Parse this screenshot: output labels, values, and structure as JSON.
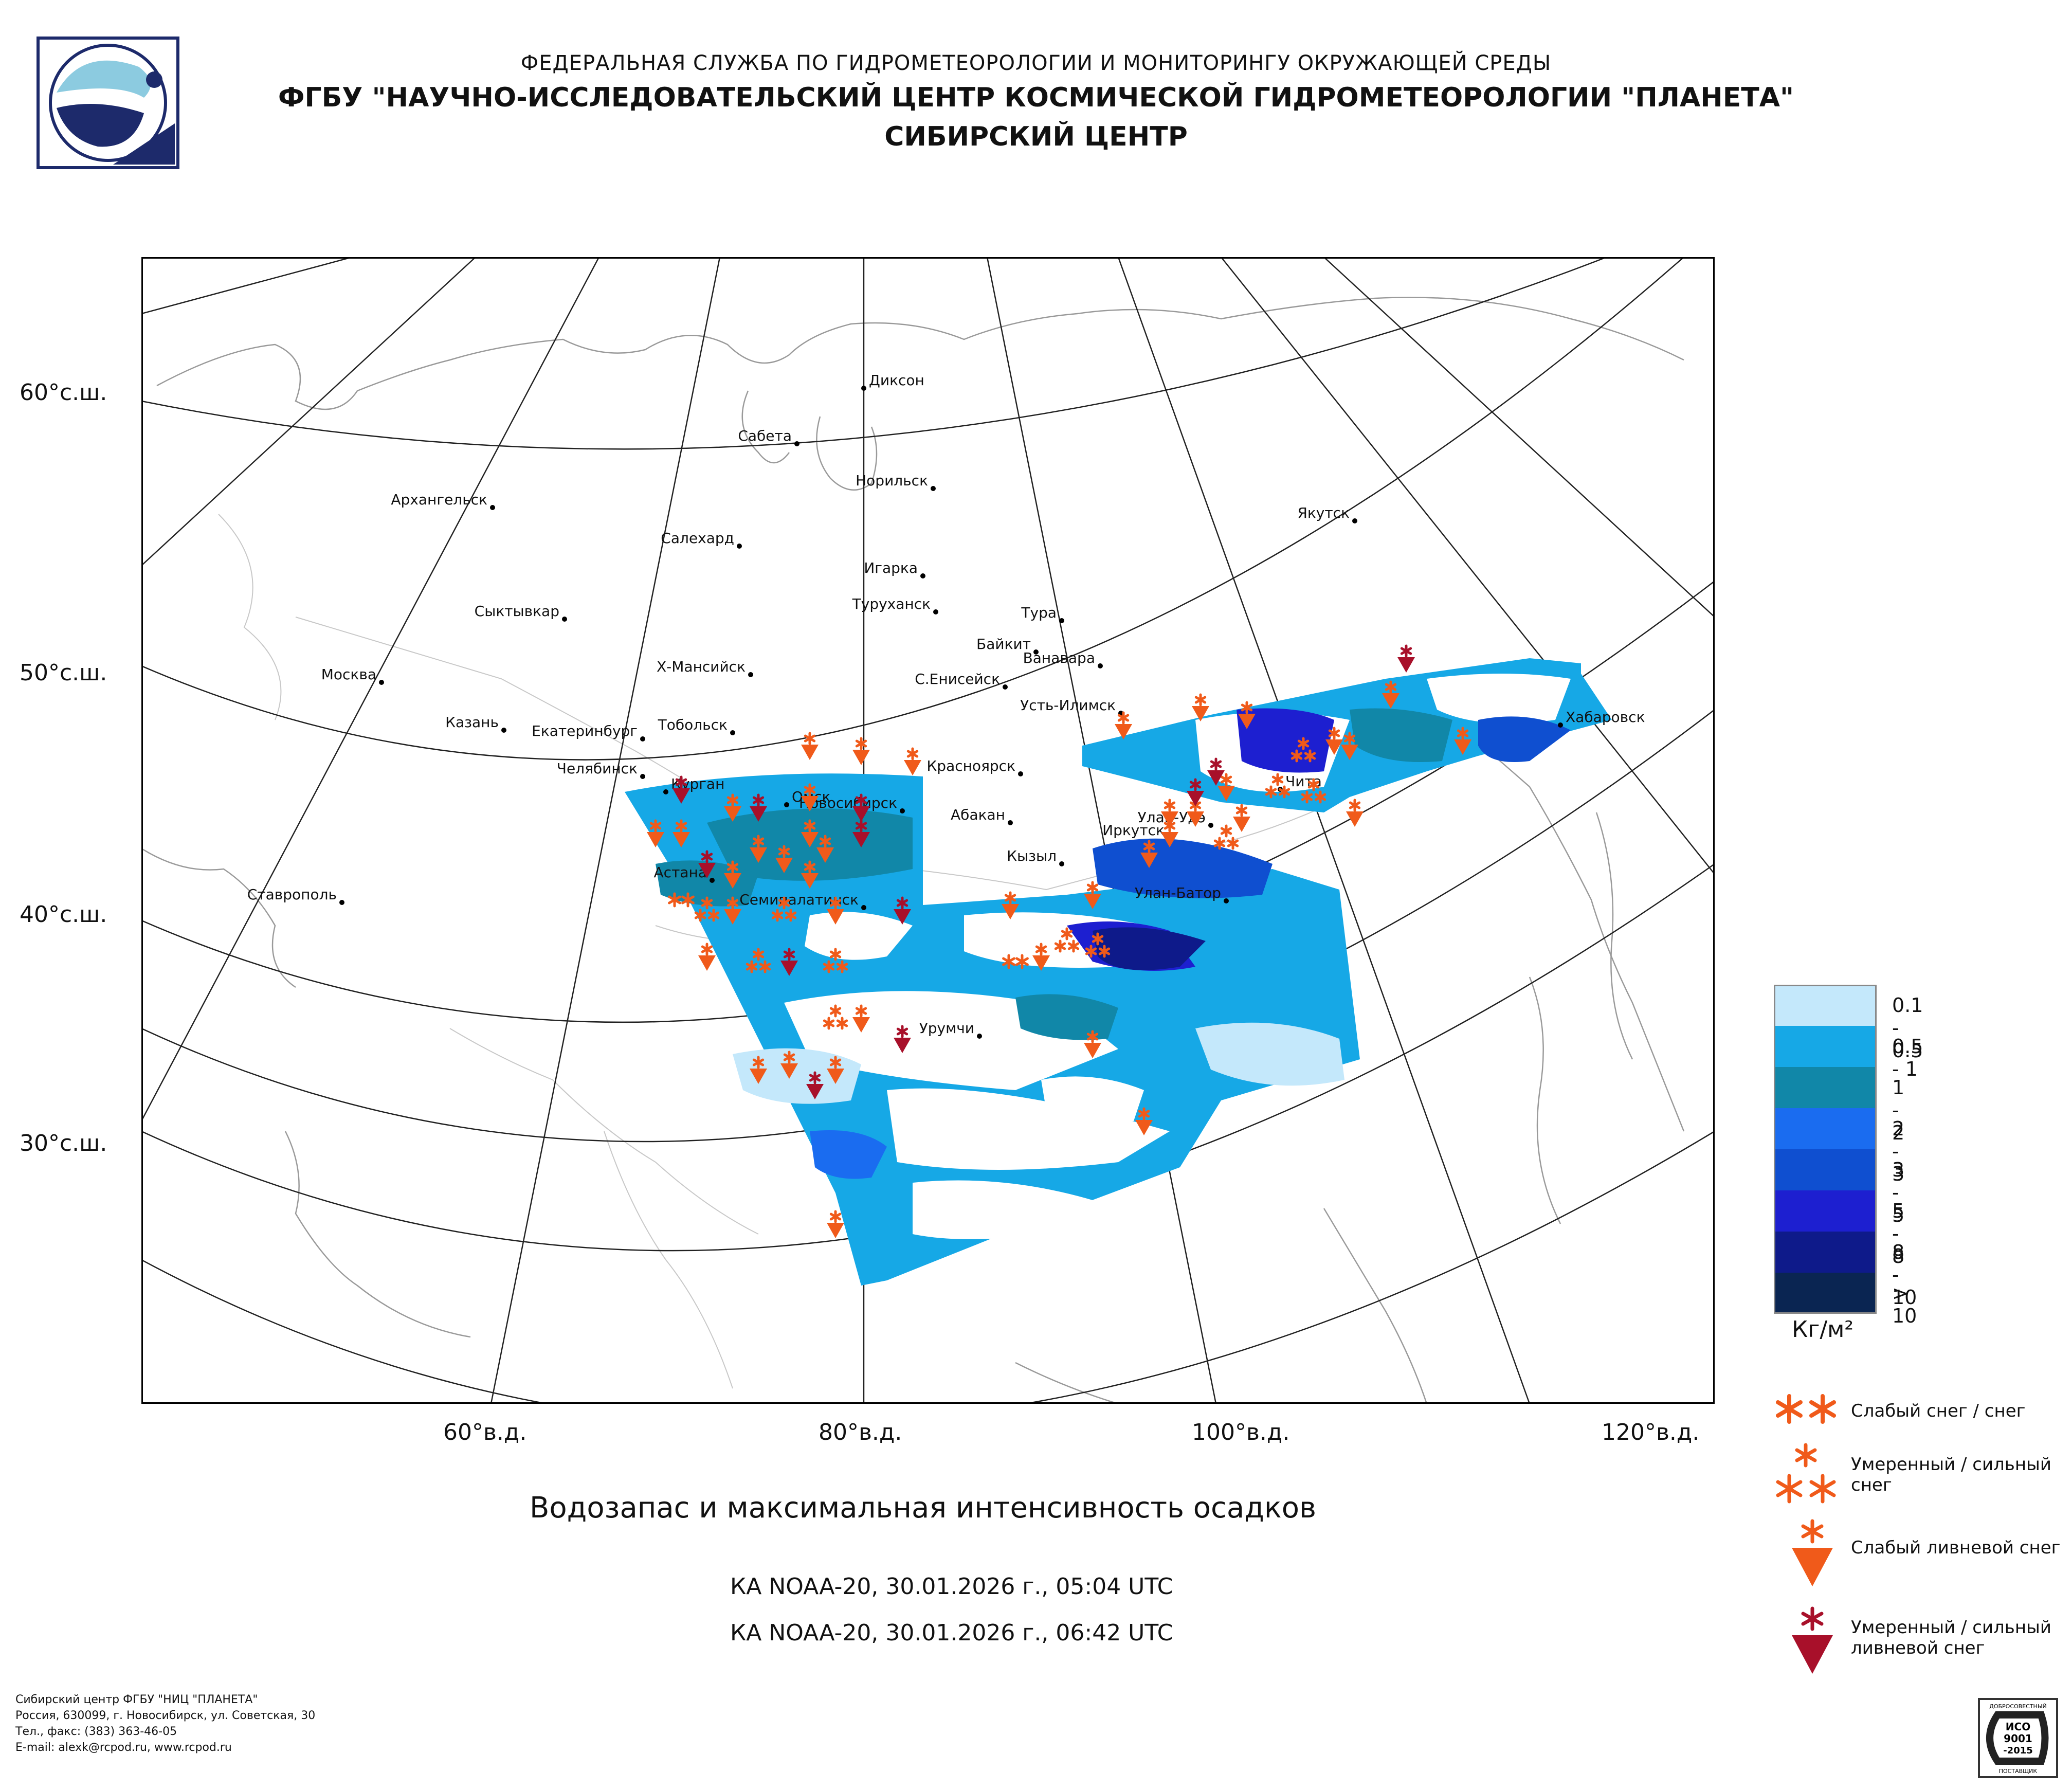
{
  "header": {
    "line1": "ФЕДЕРАЛЬНАЯ СЛУЖБА ПО ГИДРОМЕТЕОРОЛОГИИ И МОНИТОРИНГУ ОКРУЖАЮЩЕЙ СРЕДЫ",
    "line2": "ФГБУ \"НАУЧНО-ИССЛЕДОВАТЕЛЬСКИЙ ЦЕНТР КОСМИЧЕСКОЙ ГИДРОМЕТЕОРОЛОГИИ \"ПЛАНЕТА\"",
    "line3": "СИБИРСКИЙ ЦЕНТР"
  },
  "latitude_labels": [
    "60°с.ш.",
    "50°с.ш.",
    "40°с.ш.",
    "30°с.ш."
  ],
  "longitude_labels": [
    "60°в.д.",
    "80°в.д.",
    "100°в.д.",
    "120°в.д."
  ],
  "cities": [
    "Диксон",
    "Сабета",
    "Норильск",
    "Архангельск",
    "Салехард",
    "Игарка",
    "Туруханск",
    "Тура",
    "Якутск",
    "Сыктывкар",
    "Байкит",
    "Ванавара",
    "Москва",
    "Х-Мансийск",
    "С.Енисейск",
    "Усть-Илимск",
    "Хабаровск",
    "Казань",
    "Екатеринбург",
    "Тобольск",
    "Челябинск",
    "Курган",
    "Красноярск",
    "Омск",
    "Новосибирск",
    "Абакан",
    "Улан-Удэ",
    "Чита",
    "Иркутск",
    "Кызыл",
    "Астана",
    "Семипалатинск",
    "Улан-Батор",
    "Ставрополь",
    "Урумчи"
  ],
  "title": "Водозапас и максимальная интенсивность осадков",
  "passes": [
    "КА NOAA-20, 30.01.2026 г., 05:04 UTC",
    "КА NOAA-20, 30.01.2026 г., 06:42 UTC"
  ],
  "legend": {
    "classes": [
      {
        "label": "0.1 - 0.5",
        "color": "#c4e8fb"
      },
      {
        "label": "0.5 - 1",
        "color": "#16a8e6"
      },
      {
        "label": "1 - 2",
        "color": "#1187a8"
      },
      {
        "label": "2 - 3",
        "color": "#1a6cf0"
      },
      {
        "label": "3 - 5",
        "color": "#0f4fd0"
      },
      {
        "label": "5 - 8",
        "color": "#1d1fd0"
      },
      {
        "label": "8 - 10",
        "color": "#0e1a8a"
      },
      {
        "label": "> 10",
        "color": "#0a2552"
      }
    ],
    "unit": "Кг/м²",
    "symbols": [
      {
        "label": "Слабый снег / снег",
        "icon": "light-snow-icon",
        "color": "#f05a1a"
      },
      {
        "label": "Умеренный / сильный снег",
        "icon": "heavy-snow-icon",
        "color": "#f05a1a"
      },
      {
        "label": "Слабый ливневой снег",
        "icon": "light-shower-snow-icon",
        "color": "#f05a1a"
      },
      {
        "label": "Умеренный / сильный ливневой снег",
        "icon": "heavy-shower-snow-icon",
        "color": "#a8102a"
      }
    ]
  },
  "footer": {
    "lines": [
      "Сибирский центр ФГБУ \"НИЦ \"ПЛАНЕТА\"",
      "Россия, 630099, г. Новосибирск, ул. Советская, 30",
      "Тел., факс: (383) 363-46-05",
      "E-mail: alexk@rcpod.ru, www.rcpod.ru"
    ],
    "cert": [
      "ДОБРОСОВЕСТНЫЙ",
      "ИСО",
      "9001",
      "-2015",
      "ПОСТАВЩИК"
    ]
  }
}
